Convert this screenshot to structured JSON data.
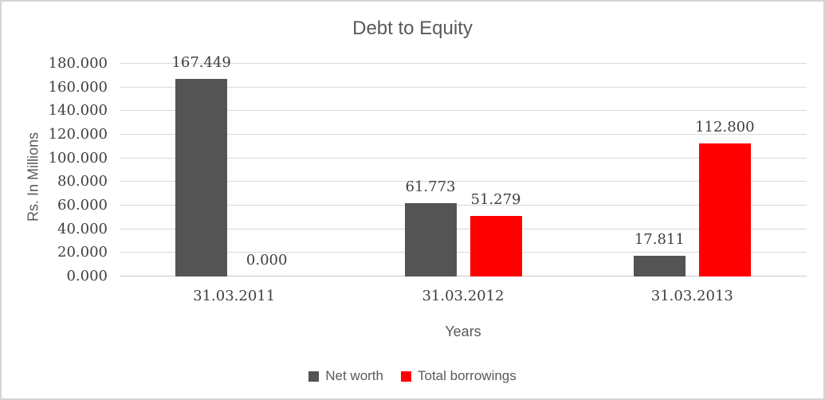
{
  "chart_data": {
    "type": "bar",
    "title": "Debt to Equity",
    "xlabel": "Years",
    "ylabel": "Rs. In Millions",
    "categories": [
      "31.03.2011",
      "31.03.2012",
      "31.03.2013"
    ],
    "series": [
      {
        "name": "Net worth",
        "color": "#545454",
        "values": [
          167.449,
          61.773,
          17.811
        ],
        "labels": [
          "167.449",
          "61.773",
          "17.811"
        ]
      },
      {
        "name": "Total borrowings",
        "color": "#ff0000",
        "values": [
          0.0,
          51.279,
          112.8
        ],
        "labels": [
          "0.000",
          "51.279",
          "112.800"
        ]
      }
    ],
    "ylim": [
      0,
      180
    ],
    "y_step": 20,
    "y_tick_labels": [
      "180.000",
      "160.000",
      "140.000",
      "120.000",
      "100.000",
      "80.000",
      "60.000",
      "40.000",
      "20.000",
      "0.000"
    ],
    "grid": "horizontal-only",
    "legend_position": "bottom",
    "gridline_color": "#d9d9d9",
    "axis_label_color": "#3f3f3f",
    "title_color": "#595959",
    "frame_border_color": "#d4d4d4"
  }
}
